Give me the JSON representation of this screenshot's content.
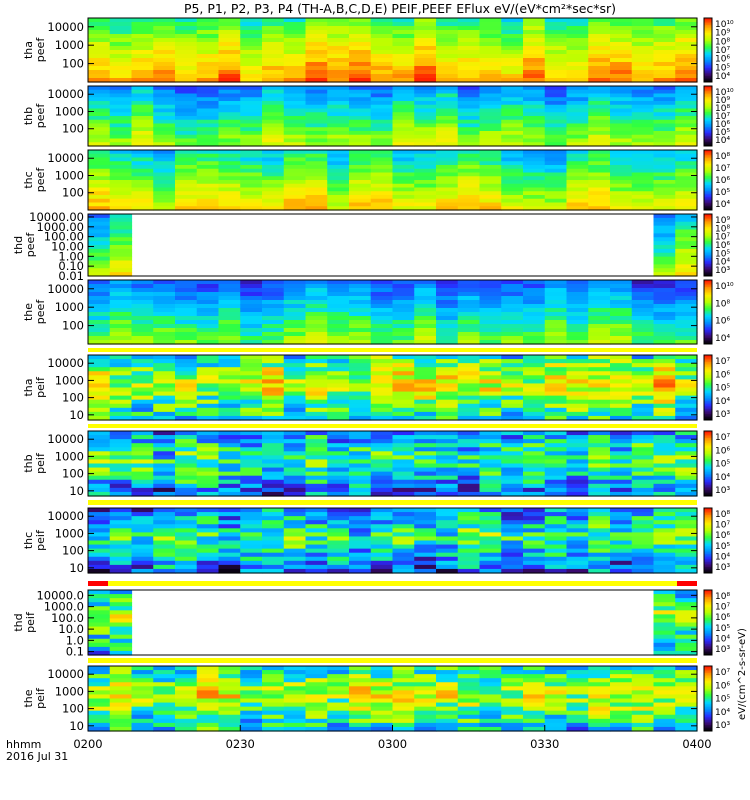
{
  "title": "P5, P1, P2, P3, P4 (TH-A,B,C,D,E) PEIF,PEEF EFlux eV/(eV*cm²*sec*sr)",
  "time_axis": {
    "ticks": [
      "0200",
      "0230",
      "0300",
      "0330",
      "0400"
    ],
    "label_top": "hhmm",
    "label_bottom": "2016 Jul 31"
  },
  "colorbar_unit_label": "eV/(cm^2-s-sr-eV)",
  "chart_data": [
    {
      "type": "heatmap",
      "probe": "tha",
      "product": "peef",
      "ylabel": [
        "tha",
        "peef"
      ],
      "ytick_labels": [
        "10000",
        "1000",
        "100"
      ],
      "ytick_values": [
        10000,
        1000,
        100
      ],
      "ylim": [
        10,
        30000
      ],
      "scale": "log",
      "colorbar_ticks": [
        "10¹⁰",
        "10⁹",
        "10⁸",
        "10⁷",
        "10⁶",
        "10⁵",
        "10⁴"
      ],
      "intensity_level": 0.72
    },
    {
      "type": "heatmap",
      "probe": "thb",
      "product": "peef",
      "ylabel": [
        "thb",
        "peef"
      ],
      "ytick_labels": [
        "10000",
        "1000",
        "100"
      ],
      "ytick_values": [
        10000,
        1000,
        100
      ],
      "ylim": [
        10,
        30000
      ],
      "scale": "log",
      "colorbar_ticks": [
        "10¹⁰",
        "10⁹",
        "10⁸",
        "10⁷",
        "10⁶",
        "10⁵",
        "10⁴"
      ],
      "intensity_level": 0.5
    },
    {
      "type": "heatmap",
      "probe": "thc",
      "product": "peef",
      "ylabel": [
        "thc",
        "peef"
      ],
      "ytick_labels": [
        "10000",
        "1000",
        "100"
      ],
      "ytick_values": [
        10000,
        1000,
        100
      ],
      "ylim": [
        10,
        30000
      ],
      "scale": "log",
      "colorbar_ticks": [
        "10⁸",
        "10⁷",
        "10⁶",
        "10⁵",
        "10⁴"
      ],
      "intensity_level": 0.6
    },
    {
      "type": "heatmap",
      "probe": "thd",
      "product": "peef",
      "ylabel": [
        "thd",
        "peef"
      ],
      "ytick_labels": [
        "10000.00",
        "1000.00",
        "100.00",
        "10.00",
        "1.00",
        "0.10",
        "0.01"
      ],
      "ytick_values": [
        10000,
        1000,
        100,
        10,
        1,
        0.1,
        0.01
      ],
      "ylim": [
        0.01,
        20000
      ],
      "scale": "log",
      "colorbar_ticks": [
        "10⁹",
        "10⁸",
        "10⁷",
        "10⁶",
        "10⁵",
        "10⁴",
        "10³"
      ],
      "data_coverage": [
        [
          "0200",
          "0210"
        ],
        [
          "0352",
          "0400"
        ]
      ],
      "intensity_level": 0.55
    },
    {
      "type": "heatmap",
      "probe": "the",
      "product": "peef",
      "ylabel": [
        "the",
        "peef"
      ],
      "ytick_labels": [
        "10000",
        "1000",
        "100"
      ],
      "ytick_values": [
        10000,
        1000,
        100
      ],
      "ylim": [
        10,
        30000
      ],
      "scale": "log",
      "colorbar_ticks": [
        "10¹⁰",
        "10⁸",
        "10⁶",
        "10⁴"
      ],
      "intensity_level": 0.45
    },
    {
      "type": "heatmap",
      "probe": "tha",
      "product": "peif",
      "ylabel": [
        "tha",
        "peif"
      ],
      "ytick_labels": [
        "10000",
        "1000",
        "100",
        "10"
      ],
      "ytick_values": [
        10000,
        1000,
        100,
        10
      ],
      "ylim": [
        5,
        30000
      ],
      "scale": "log",
      "colorbar_ticks": [
        "10⁷",
        "10⁶",
        "10⁵",
        "10⁴",
        "10³"
      ],
      "intensity_level": 0.5
    },
    {
      "type": "heatmap",
      "probe": "thb",
      "product": "peif",
      "ylabel": [
        "thb",
        "peif"
      ],
      "ytick_labels": [
        "10000",
        "1000",
        "100",
        "10"
      ],
      "ytick_values": [
        10000,
        1000,
        100,
        10
      ],
      "ylim": [
        5,
        30000
      ],
      "scale": "log",
      "colorbar_ticks": [
        "10⁷",
        "10⁶",
        "10⁵",
        "10⁴",
        "10³"
      ],
      "intensity_level": 0.3
    },
    {
      "type": "heatmap",
      "probe": "thc",
      "product": "peif",
      "ylabel": [
        "thc",
        "peif"
      ],
      "ytick_labels": [
        "10000",
        "1000",
        "100",
        "10"
      ],
      "ytick_values": [
        10000,
        1000,
        100,
        10
      ],
      "ylim": [
        5,
        30000
      ],
      "scale": "log",
      "colorbar_ticks": [
        "10⁸",
        "10⁷",
        "10⁶",
        "10⁵",
        "10⁴",
        "10³"
      ],
      "intensity_level": 0.3
    },
    {
      "type": "heatmap",
      "probe": "thd",
      "product": "peif",
      "ylabel": [
        "thd",
        "peif"
      ],
      "ytick_labels": [
        "10000.0",
        "1000.0",
        "100.0",
        "10.0",
        "1.0",
        "0.1"
      ],
      "ytick_values": [
        10000,
        1000,
        100,
        10,
        1,
        0.1
      ],
      "ylim": [
        0.05,
        30000
      ],
      "scale": "log",
      "colorbar_ticks": [
        "10⁸",
        "10⁷",
        "10⁶",
        "10⁵",
        "10⁴",
        "10³"
      ],
      "data_coverage": [
        [
          "0200",
          "0210"
        ],
        [
          "0352",
          "0400"
        ]
      ],
      "intensity_level": 0.4
    },
    {
      "type": "heatmap",
      "probe": "the",
      "product": "peif",
      "ylabel": [
        "the",
        "peif"
      ],
      "ytick_labels": [
        "10000",
        "1000",
        "100",
        "10"
      ],
      "ytick_values": [
        10000,
        1000,
        100,
        10
      ],
      "ylim": [
        5,
        30000
      ],
      "scale": "log",
      "colorbar_ticks": [
        "10⁷",
        "10⁶",
        "10⁵",
        "10⁴",
        "10³"
      ],
      "intensity_level": 0.45
    }
  ],
  "colors": {
    "spectrogram_ramp": [
      "#000000",
      "#3a0a6e",
      "#2a2aff",
      "#0090ff",
      "#00d8ff",
      "#30ff40",
      "#b8ff00",
      "#ffee00",
      "#ff9a00",
      "#ff2000"
    ],
    "separator_yellow": "#ffff00",
    "separator_red": "#ff0000"
  }
}
